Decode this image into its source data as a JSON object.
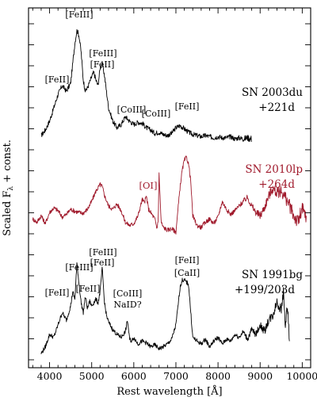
{
  "chart_data": {
    "type": "line",
    "xlabel": "Rest wavelength [Å]",
    "ylabel": "Scaled F",
    "ylabel_sub": "λ",
    "ylabel_suffix": " + const.",
    "xlim": [
      3500,
      10200
    ],
    "xticks": [
      4000,
      5000,
      6000,
      7000,
      8000,
      9000,
      10000
    ],
    "grid": false,
    "series": [
      {
        "name": "SN 2003du",
        "epoch": "+221d",
        "color": "#000000",
        "x": [
          3800,
          3900,
          4000,
          4100,
          4200,
          4300,
          4400,
          4500,
          4550,
          4600,
          4650,
          4700,
          4750,
          4800,
          4850,
          4900,
          5000,
          5050,
          5100,
          5150,
          5200,
          5250,
          5300,
          5350,
          5400,
          5500,
          5600,
          5700,
          5800,
          5900,
          6000,
          6100,
          6200,
          6300,
          6400,
          6500,
          6600,
          6700,
          6800,
          6900,
          7000,
          7100,
          7200,
          7300,
          7400,
          7500,
          7600,
          7700,
          7800,
          7900,
          8000,
          8100,
          8200,
          8300,
          8400,
          8500,
          8600,
          8700,
          8800
        ],
        "y": [
          0.05,
          0.1,
          0.18,
          0.3,
          0.42,
          0.5,
          0.45,
          0.52,
          0.7,
          0.88,
          1.0,
          0.95,
          0.8,
          0.55,
          0.45,
          0.48,
          0.58,
          0.62,
          0.55,
          0.5,
          0.66,
          0.7,
          0.6,
          0.45,
          0.3,
          0.18,
          0.12,
          0.15,
          0.22,
          0.18,
          0.15,
          0.17,
          0.16,
          0.12,
          0.1,
          0.07,
          0.08,
          0.06,
          0.05,
          0.07,
          0.12,
          0.14,
          0.11,
          0.08,
          0.06,
          0.05,
          0.04,
          0.05,
          0.04,
          0.03,
          0.04,
          0.03,
          0.03,
          0.04,
          0.02,
          0.03,
          0.02,
          0.03,
          0.02
        ]
      },
      {
        "name": "SN 2010lp",
        "epoch": "+264d",
        "color": "#a01a2c",
        "x": [
          3600,
          3700,
          3800,
          3900,
          4000,
          4100,
          4200,
          4300,
          4400,
          4500,
          4600,
          4700,
          4800,
          4900,
          5000,
          5100,
          5200,
          5250,
          5300,
          5400,
          5500,
          5600,
          5700,
          5800,
          5900,
          6000,
          6100,
          6200,
          6250,
          6300,
          6350,
          6400,
          6500,
          6550,
          6580,
          6600,
          6650,
          6700,
          6800,
          6900,
          7000,
          7100,
          7150,
          7200,
          7250,
          7300,
          7350,
          7400,
          7500,
          7600,
          7700,
          7800,
          7900,
          8000,
          8100,
          8200,
          8300,
          8400,
          8500,
          8600,
          8700,
          8800,
          8900,
          9000,
          9100,
          9200,
          9300,
          9400,
          9500,
          9600,
          9700,
          9800,
          9900,
          10000,
          10100
        ],
        "y": [
          0.35,
          0.3,
          0.4,
          0.28,
          0.45,
          0.52,
          0.48,
          0.38,
          0.42,
          0.5,
          0.47,
          0.45,
          0.44,
          0.5,
          0.62,
          0.78,
          0.88,
          0.85,
          0.72,
          0.55,
          0.5,
          0.58,
          0.48,
          0.3,
          0.25,
          0.28,
          0.4,
          0.65,
          0.6,
          0.7,
          0.5,
          0.45,
          0.35,
          0.2,
          0.35,
          1.05,
          0.3,
          0.22,
          0.18,
          0.2,
          0.15,
          0.85,
          1.1,
          1.25,
          1.3,
          1.2,
          0.95,
          0.4,
          0.25,
          0.22,
          0.3,
          0.35,
          0.28,
          0.38,
          0.62,
          0.5,
          0.42,
          0.48,
          0.55,
          0.62,
          0.68,
          0.55,
          0.45,
          0.4,
          0.52,
          0.7,
          0.82,
          0.75,
          0.78,
          0.68,
          0.55,
          0.4,
          0.3,
          0.5,
          0.35
        ]
      },
      {
        "name": "SN 1991bg",
        "epoch": "+199/203d",
        "color": "#000000",
        "x": [
          3800,
          3900,
          4000,
          4100,
          4200,
          4300,
          4400,
          4500,
          4550,
          4600,
          4650,
          4700,
          4750,
          4800,
          4850,
          4900,
          4950,
          5000,
          5100,
          5150,
          5200,
          5250,
          5300,
          5350,
          5400,
          5500,
          5600,
          5700,
          5800,
          5850,
          5900,
          5950,
          6000,
          6100,
          6200,
          6300,
          6400,
          6500,
          6600,
          6700,
          6800,
          6900,
          7000,
          7050,
          7100,
          7150,
          7200,
          7250,
          7300,
          7350,
          7400,
          7500,
          7600,
          7700,
          7800,
          7900,
          8000,
          8100,
          8200,
          8300,
          8400,
          8500,
          8600,
          8700,
          8800,
          8900,
          9000,
          9100,
          9200,
          9300,
          9400,
          9500,
          9550,
          9600,
          9650,
          9700
        ],
        "y": [
          0.05,
          0.12,
          0.25,
          0.22,
          0.35,
          0.48,
          0.4,
          0.55,
          0.7,
          0.62,
          1.0,
          0.78,
          0.58,
          0.48,
          0.65,
          0.52,
          0.6,
          0.55,
          0.62,
          0.58,
          0.7,
          0.95,
          0.6,
          0.45,
          0.38,
          0.3,
          0.25,
          0.22,
          0.28,
          0.4,
          0.2,
          0.18,
          0.22,
          0.15,
          0.18,
          0.16,
          0.12,
          0.14,
          0.1,
          0.12,
          0.15,
          0.2,
          0.35,
          0.55,
          0.75,
          0.82,
          0.82,
          0.8,
          0.78,
          0.5,
          0.22,
          0.18,
          0.15,
          0.2,
          0.12,
          0.18,
          0.22,
          0.15,
          0.2,
          0.18,
          0.25,
          0.22,
          0.28,
          0.2,
          0.3,
          0.25,
          0.35,
          0.28,
          0.4,
          0.45,
          0.6,
          0.5,
          0.7,
          0.35,
          0.55,
          0.15
        ]
      }
    ],
    "annotations": [
      {
        "text": "[FeIII]",
        "wl": 4700,
        "series": 0
      },
      {
        "text": "[FeII]",
        "wl": 4290,
        "series": 0
      },
      {
        "text": "[FeIII]",
        "wl": 5270,
        "series": 0
      },
      {
        "text": "[FeII]",
        "wl": 5270,
        "series": 0
      },
      {
        "text": "[CoIII]",
        "wl": 5890,
        "series": 0
      },
      {
        "text": "[CoIII]",
        "wl": 6580,
        "series": 0
      },
      {
        "text": "[FeII]",
        "wl": 7150,
        "series": 0
      },
      {
        "text": "[OI]",
        "wl": 6300,
        "series": 1
      },
      {
        "text": "[FeIII]",
        "wl": 4700,
        "series": 2
      },
      {
        "text": "[FeII]",
        "wl": 4290,
        "series": 2
      },
      {
        "text": "[FeIII]",
        "wl": 5270,
        "series": 2
      },
      {
        "text": "[FeII]",
        "wl": 5270,
        "series": 2
      },
      {
        "text": "[FeII]",
        "wl": 4960,
        "series": 2
      },
      {
        "text": "[CoIII]",
        "wl": 5890,
        "series": 2
      },
      {
        "text": "NaID?",
        "wl": 5890,
        "series": 2
      },
      {
        "text": "[FeII]",
        "wl": 7250,
        "series": 2
      },
      {
        "text": "[CaII]",
        "wl": 7250,
        "series": 2
      }
    ]
  }
}
